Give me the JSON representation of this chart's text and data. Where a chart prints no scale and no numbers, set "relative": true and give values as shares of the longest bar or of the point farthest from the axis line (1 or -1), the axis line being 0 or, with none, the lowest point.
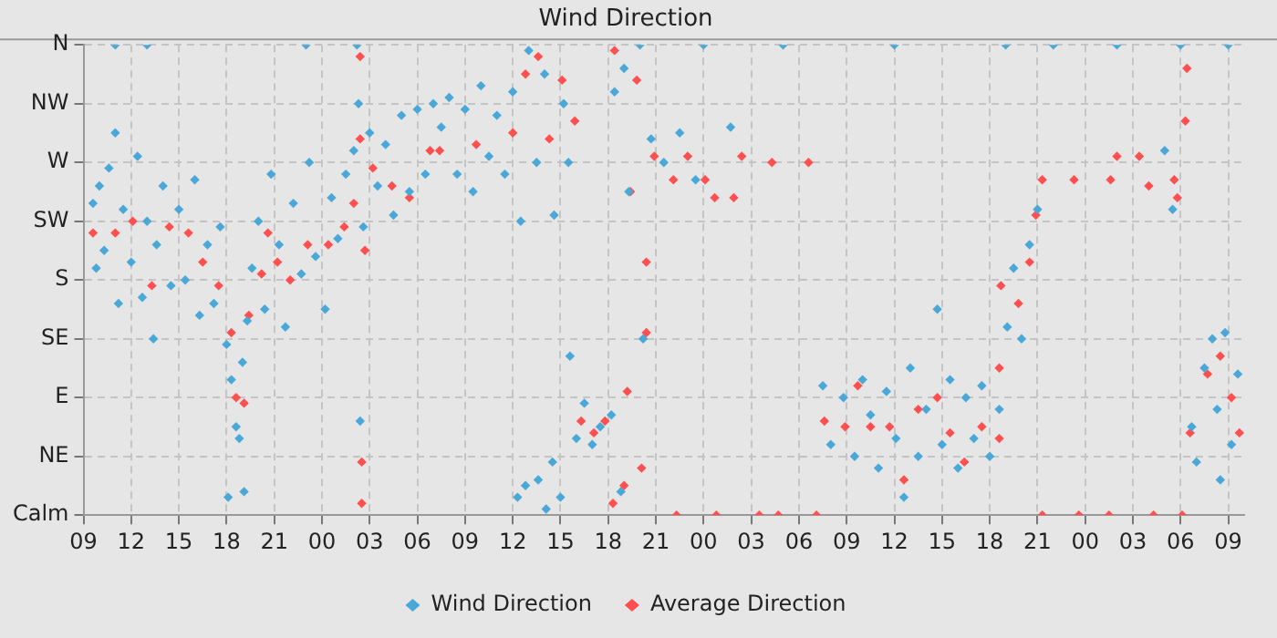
{
  "chart_data": {
    "type": "scatter",
    "title": "Wind Direction",
    "xlim": [
      9,
      82
    ],
    "relative": true,
    "xticks": [
      {
        "value": 9,
        "label": "09"
      },
      {
        "value": 12,
        "label": "12"
      },
      {
        "value": 15,
        "label": "15"
      },
      {
        "value": 18,
        "label": "18"
      },
      {
        "value": 21,
        "label": "21"
      },
      {
        "value": 24,
        "label": "00"
      },
      {
        "value": 27,
        "label": "03"
      },
      {
        "value": 30,
        "label": "06"
      },
      {
        "value": 33,
        "label": "09"
      },
      {
        "value": 36,
        "label": "12"
      },
      {
        "value": 39,
        "label": "15"
      },
      {
        "value": 42,
        "label": "18"
      },
      {
        "value": 45,
        "label": "21"
      },
      {
        "value": 48,
        "label": "00"
      },
      {
        "value": 51,
        "label": "03"
      },
      {
        "value": 54,
        "label": "06"
      },
      {
        "value": 57,
        "label": "09"
      },
      {
        "value": 60,
        "label": "12"
      },
      {
        "value": 63,
        "label": "15"
      },
      {
        "value": 66,
        "label": "18"
      },
      {
        "value": 69,
        "label": "21"
      },
      {
        "value": 72,
        "label": "00"
      },
      {
        "value": 75,
        "label": "03"
      },
      {
        "value": 78,
        "label": "06"
      },
      {
        "value": 81,
        "label": "09"
      }
    ],
    "y_categories": [
      "N",
      "NW",
      "W",
      "SW",
      "S",
      "SE",
      "E",
      "NE",
      "Calm"
    ],
    "grid": true,
    "legend": "bottom",
    "marker": "diamond",
    "series": [
      {
        "name": "Wind Direction",
        "color": "#4aa8d8",
        "x": [
          9.6,
          9.8,
          10.0,
          10.3,
          10.6,
          11.0,
          11.2,
          11.5,
          12.0,
          12.4,
          12.7,
          13.0,
          13.4,
          13.6,
          14.0,
          14.5,
          15.0,
          15.4,
          16.0,
          16.3,
          16.8,
          17.2,
          17.6,
          18.0,
          18.3,
          18.6,
          18.8,
          19.0,
          19.3,
          19.6,
          20.0,
          20.4,
          20.8,
          21.3,
          21.7,
          22.2,
          22.7,
          23.2,
          23.6,
          24.2,
          24.6,
          25.0,
          25.5,
          26.0,
          26.3,
          26.4,
          26.6,
          27.0,
          27.5,
          28.0,
          28.5,
          29.0,
          29.5,
          30.0,
          30.5,
          31.0,
          31.5,
          32.0,
          32.5,
          33.0,
          33.5,
          34.0,
          34.5,
          35.0,
          35.5,
          36.0,
          36.5,
          37.0,
          37.5,
          38.0,
          38.6,
          39.2,
          39.5,
          36.3,
          36.8,
          37.6,
          38.5,
          39.0,
          39.6,
          40.0,
          40.5,
          41.0,
          41.5,
          42.2,
          42.4,
          43.0,
          42.8,
          43.3,
          44.2,
          44.7,
          45.5,
          46.5,
          47.5,
          49.7,
          26.2,
          44.0,
          48.0,
          53.0,
          60.0,
          67.0,
          70.0,
          74.0,
          78.0,
          81.0,
          11.0,
          13.0,
          23.0,
          55.5,
          56.0,
          56.8,
          57.5,
          58.0,
          58.5,
          59.0,
          59.5,
          60.1,
          60.6,
          61.0,
          61.5,
          62.0,
          62.7,
          63.0,
          63.5,
          64.0,
          64.5,
          65.0,
          65.5,
          66.0,
          66.6,
          67.1,
          67.5,
          68.0,
          68.5,
          69.0,
          77.5,
          77.0,
          78.7,
          79.0,
          79.5,
          80.0,
          80.3,
          80.8,
          81.2,
          81.6,
          80.5,
          18.1,
          19.1,
          38.1
        ],
        "values": [
          0.663,
          0.525,
          0.7,
          0.563,
          0.738,
          0.813,
          0.45,
          0.65,
          0.538,
          0.763,
          0.463,
          0.625,
          0.375,
          0.575,
          0.7,
          0.488,
          0.65,
          0.5,
          0.713,
          0.425,
          0.575,
          0.45,
          0.613,
          0.363,
          0.288,
          0.188,
          0.163,
          0.325,
          0.413,
          0.525,
          0.625,
          0.438,
          0.725,
          0.575,
          0.4,
          0.663,
          0.513,
          0.75,
          0.55,
          0.438,
          0.675,
          0.588,
          0.725,
          0.775,
          0.875,
          0.2,
          0.613,
          0.813,
          0.7,
          0.788,
          0.638,
          0.85,
          0.688,
          0.863,
          0.725,
          0.875,
          0.825,
          0.888,
          0.725,
          0.863,
          0.688,
          0.913,
          0.763,
          0.85,
          0.725,
          0.9,
          0.625,
          0.988,
          0.75,
          0.938,
          0.638,
          0.875,
          0.75,
          0.038,
          0.063,
          0.075,
          0.113,
          0.038,
          0.338,
          0.163,
          0.238,
          0.15,
          0.188,
          0.213,
          0.9,
          0.95,
          0.05,
          0.688,
          0.375,
          0.8,
          0.75,
          0.813,
          0.713,
          0.825,
          1,
          1,
          1,
          1,
          1,
          1,
          1,
          1,
          1,
          1,
          1,
          1,
          1,
          0.275,
          0.15,
          0.25,
          0.125,
          0.288,
          0.213,
          0.1,
          0.263,
          0.163,
          0.038,
          0.313,
          0.125,
          0.225,
          0.438,
          0.15,
          0.288,
          0.1,
          0.25,
          0.163,
          0.275,
          0.125,
          0.225,
          0.4,
          0.525,
          0.375,
          0.575,
          0.65,
          0.65,
          0.775,
          0.188,
          0.113,
          0.313,
          0.375,
          0.225,
          0.388,
          0.15,
          0.3,
          0.075,
          0.038,
          0.05,
          0.013
        ]
      },
      {
        "name": "Average Direction",
        "color": "#ff4f4f",
        "x": [
          9.6,
          11.0,
          12.1,
          13.3,
          14.4,
          15.6,
          16.5,
          17.5,
          18.3,
          18.6,
          19.1,
          19.4,
          20.2,
          20.6,
          21.2,
          22.0,
          23.1,
          24.4,
          25.4,
          26.0,
          26.4,
          26.4,
          26.5,
          26.5,
          26.7,
          27.2,
          28.4,
          29.5,
          30.8,
          31.4,
          33.7,
          36.0,
          36.8,
          37.6,
          38.3,
          39.1,
          39.9,
          40.3,
          41.1,
          41.8,
          42.3,
          43.0,
          43.2,
          42.4,
          43.8,
          43.4,
          44.4,
          44.4,
          44.1,
          44.9,
          46.1,
          47.0,
          48.1,
          48.7,
          49.9,
          50.4,
          52.3,
          54.6,
          46.3,
          48.8,
          51.5,
          52.7,
          55.1,
          55.6,
          56.9,
          57.7,
          58.5,
          59.7,
          60.6,
          61.5,
          62.7,
          63.5,
          64.4,
          65.5,
          66.6,
          66.6,
          66.7,
          67.8,
          68.5,
          68.9,
          69.3,
          71.3,
          73.6,
          74.0,
          75.4,
          76.0,
          77.6,
          77.8,
          78.3,
          78.4,
          78.6,
          79.7,
          80.5,
          81.2,
          81.7,
          69.3,
          71.6,
          73.5,
          76.3,
          78.1
        ],
        "values": [
          0.6,
          0.6,
          0.625,
          0.488,
          0.613,
          0.6,
          0.538,
          0.488,
          0.388,
          0.25,
          0.238,
          0.425,
          0.513,
          0.6,
          0.538,
          0.5,
          0.575,
          0.575,
          0.613,
          0.663,
          0.8,
          0.975,
          0.113,
          0.025,
          0.563,
          0.738,
          0.7,
          0.675,
          0.775,
          0.775,
          0.788,
          0.813,
          0.938,
          0.975,
          0.8,
          0.925,
          0.838,
          0.2,
          0.175,
          0.2,
          0.025,
          0.063,
          0.263,
          0.988,
          0.925,
          0.688,
          0.388,
          0.538,
          0.1,
          0.763,
          0.713,
          0.763,
          0.713,
          0.675,
          0.675,
          0.763,
          0.75,
          0.75,
          0,
          0,
          0,
          0,
          0,
          0.2,
          0.188,
          0.275,
          0.188,
          0.188,
          0.075,
          0.225,
          0.25,
          0.175,
          0.113,
          0.188,
          0.163,
          0.313,
          0.488,
          0.45,
          0.538,
          0.638,
          0.713,
          0.713,
          0.713,
          0.763,
          0.763,
          0.7,
          0.713,
          0.675,
          0.838,
          0.95,
          0.175,
          0.3,
          0.338,
          0.25,
          0.175,
          0,
          0,
          0,
          0,
          0
        ]
      }
    ]
  }
}
